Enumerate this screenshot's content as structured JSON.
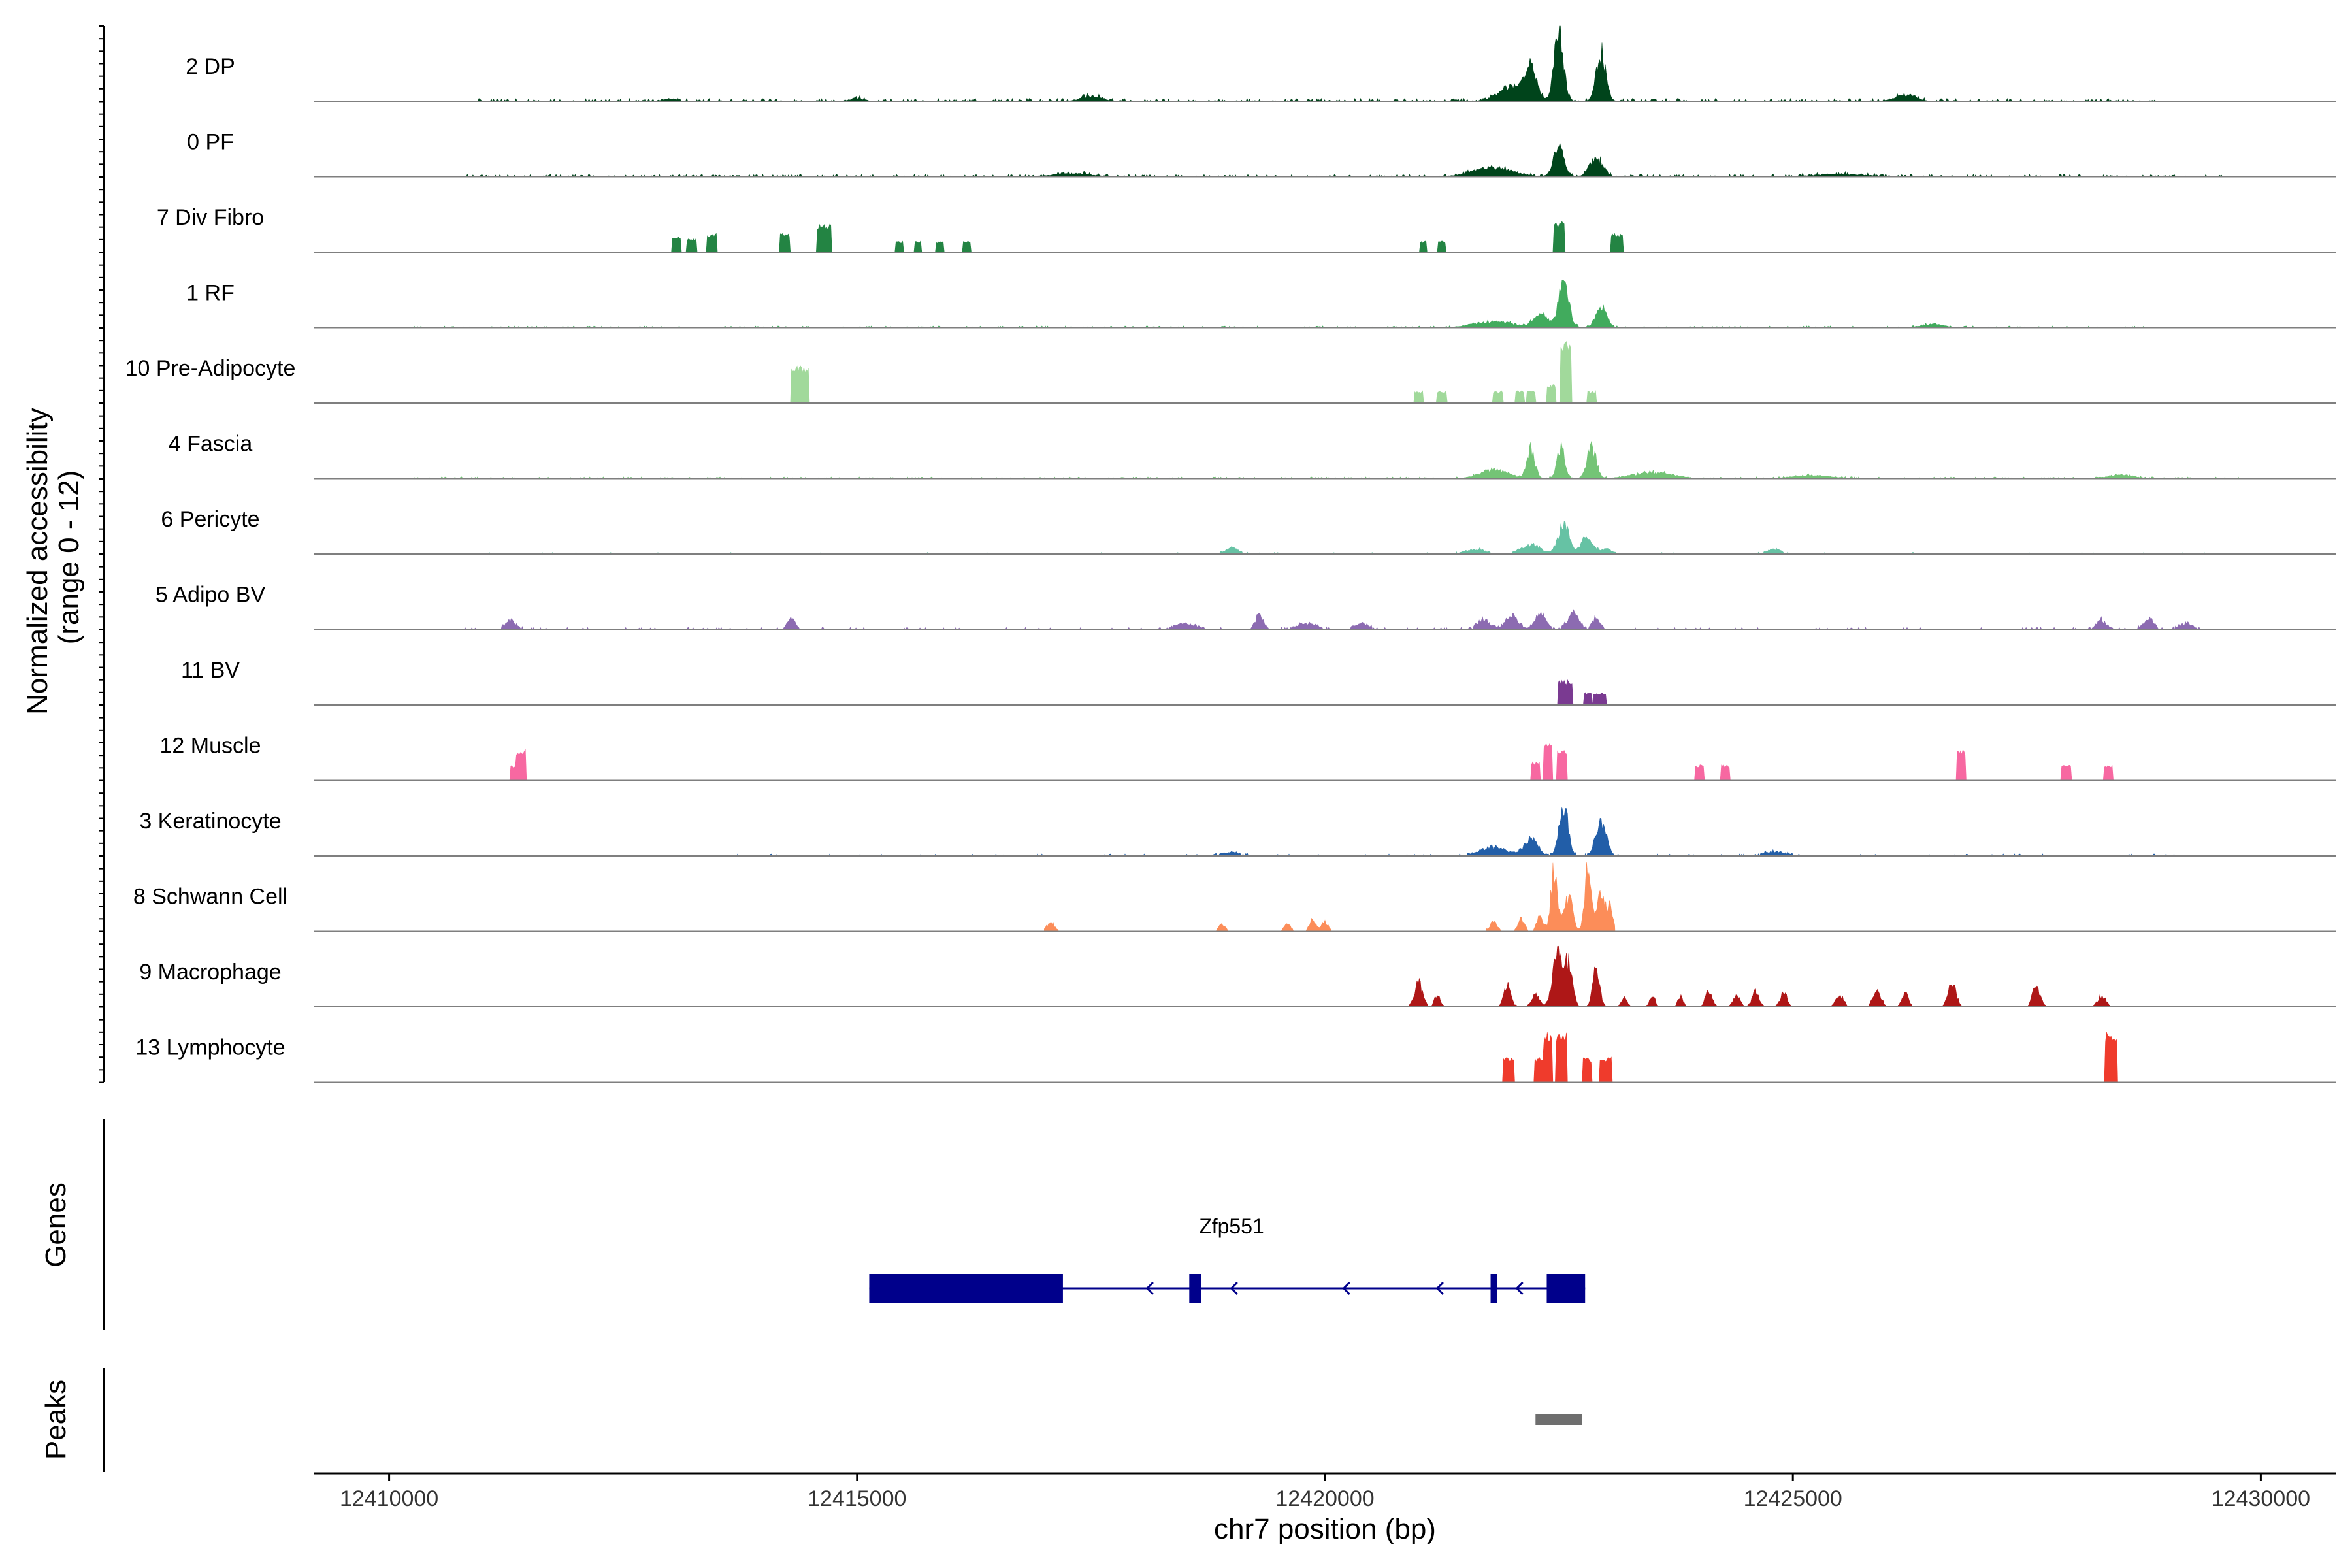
{
  "chart_data": {
    "type": "area",
    "title": "",
    "chromosome": "chr7",
    "xlabel": "chr7 position (bp)",
    "ylabel": "Normalized accessibility\n(range 0 - 12)",
    "ylabel_lines": [
      "Normalized accessibility",
      "(range 0 - 12)"
    ],
    "ylim": [
      0,
      12
    ],
    "xlim": [
      12409200,
      12430800
    ],
    "xticks": [
      12410000,
      12415000,
      12420000,
      12425000,
      12430000
    ],
    "xtick_labels": [
      "12410000",
      "12415000",
      "12420000",
      "12425000",
      "12430000"
    ],
    "panels": {
      "genes_title": "Genes",
      "peaks_title": "Peaks"
    },
    "series": [
      {
        "name": "2 DP",
        "color": "#00441b",
        "style": "noise",
        "range": [
          12410900,
          12428900
        ],
        "noise": 0.5,
        "peaks": [
          [
            12413000,
            100,
            0.4
          ],
          [
            12415000,
            100,
            0.5
          ],
          [
            12417500,
            150,
            0.8
          ],
          [
            12422000,
            200,
            2.5
          ],
          [
            12422500,
            70,
            11.5
          ],
          [
            12422950,
            70,
            8
          ],
          [
            12422200,
            90,
            5
          ],
          [
            12426200,
            150,
            1
          ]
        ]
      },
      {
        "name": "0 PF",
        "color": "#00441b",
        "style": "noise",
        "range": [
          12410800,
          12429600
        ],
        "noise": 0.45,
        "peaks": [
          [
            12422500,
            80,
            5
          ],
          [
            12422900,
            100,
            3
          ],
          [
            12421800,
            300,
            1.5
          ],
          [
            12417300,
            300,
            0.5
          ],
          [
            12425500,
            400,
            0.4
          ]
        ]
      },
      {
        "name": "7 Div Fibro",
        "color": "#238443",
        "style": "blocks",
        "range": [
          12409200,
          12430800
        ],
        "noise": 0,
        "peaks": [
          [
            12413070,
            50,
            2.5
          ],
          [
            12413230,
            50,
            2.2
          ],
          [
            12413450,
            50,
            3
          ],
          [
            12414230,
            50,
            3
          ],
          [
            12414650,
            80,
            4.5
          ],
          [
            12415450,
            40,
            1.8
          ],
          [
            12415650,
            40,
            1.8
          ],
          [
            12415880,
            40,
            1.8
          ],
          [
            12416170,
            40,
            1.8
          ],
          [
            12421050,
            40,
            1.8
          ],
          [
            12421250,
            40,
            1.8
          ],
          [
            12422500,
            60,
            5
          ],
          [
            12423120,
            60,
            3
          ]
        ]
      },
      {
        "name": "1 RF",
        "color": "#41ab5d",
        "style": "noise",
        "range": [
          12410100,
          12428800
        ],
        "noise": 0.3,
        "peaks": [
          [
            12422300,
            100,
            2.5
          ],
          [
            12422550,
            80,
            7
          ],
          [
            12422950,
            80,
            3.5
          ],
          [
            12421800,
            300,
            1
          ],
          [
            12426500,
            150,
            0.6
          ]
        ]
      },
      {
        "name": "10 Pre-Adipocyte",
        "color": "#a1d99b",
        "style": "blocks",
        "range": [
          12409200,
          12430800
        ],
        "noise": 0,
        "peaks": [
          [
            12414350,
            60,
            6
          ],
          [
            12414430,
            60,
            6
          ],
          [
            12421000,
            50,
            2
          ],
          [
            12421250,
            50,
            2
          ],
          [
            12421850,
            50,
            2
          ],
          [
            12422080,
            50,
            2
          ],
          [
            12422200,
            50,
            2
          ],
          [
            12422420,
            50,
            3
          ],
          [
            12422570,
            60,
            10
          ],
          [
            12422850,
            50,
            2
          ]
        ]
      },
      {
        "name": "4 Fascia",
        "color": "#74c476",
        "style": "noise",
        "range": [
          12410200,
          12429800
        ],
        "noise": 0.3,
        "peaks": [
          [
            12422200,
            60,
            5
          ],
          [
            12422520,
            60,
            5
          ],
          [
            12422850,
            70,
            5
          ],
          [
            12421800,
            200,
            1.5
          ],
          [
            12423500,
            300,
            1
          ],
          [
            12425200,
            300,
            0.5
          ],
          [
            12428500,
            200,
            0.6
          ]
        ]
      },
      {
        "name": "6 Pericyte",
        "color": "#66c2a4",
        "style": "sparse",
        "range": [
          12410100,
          12429400
        ],
        "noise": 0.3,
        "peaks": [
          [
            12422550,
            80,
            5
          ],
          [
            12422800,
            80,
            3
          ],
          [
            12422200,
            150,
            1.5
          ],
          [
            12419000,
            100,
            1
          ],
          [
            12421600,
            150,
            0.8
          ],
          [
            12423000,
            100,
            0.8
          ],
          [
            12424800,
            100,
            0.8
          ]
        ]
      },
      {
        "name": "5 Adipo BV",
        "color": "#8c6bb1",
        "style": "sparse",
        "range": [
          12410800,
          12429400
        ],
        "noise": 0.4,
        "peaks": [
          [
            12411300,
            80,
            1.5
          ],
          [
            12414300,
            60,
            1.8
          ],
          [
            12418500,
            150,
            1
          ],
          [
            12419300,
            60,
            2.5
          ],
          [
            12419800,
            150,
            1
          ],
          [
            12420400,
            100,
            1
          ],
          [
            12421700,
            100,
            1.5
          ],
          [
            12422000,
            100,
            2
          ],
          [
            12422300,
            80,
            2.5
          ],
          [
            12422650,
            80,
            3
          ],
          [
            12422900,
            60,
            2
          ],
          [
            12428300,
            80,
            1.5
          ],
          [
            12428800,
            80,
            1.8
          ],
          [
            12429200,
            100,
            1
          ]
        ]
      },
      {
        "name": "11 BV",
        "color": "#7a3a91",
        "style": "blocks",
        "range": [
          12409200,
          12430800
        ],
        "noise": 0,
        "peaks": [
          [
            12422530,
            40,
            4
          ],
          [
            12422600,
            40,
            4
          ],
          [
            12422810,
            40,
            2
          ],
          [
            12422900,
            40,
            2
          ],
          [
            12422970,
            40,
            2
          ]
        ]
      },
      {
        "name": "12 Muscle",
        "color": "#f768a1",
        "style": "blocks",
        "range": [
          12409200,
          12430800
        ],
        "noise": 0,
        "peaks": [
          [
            12411360,
            60,
            2.5
          ],
          [
            12411410,
            50,
            5
          ],
          [
            12422250,
            50,
            3
          ],
          [
            12422380,
            50,
            6
          ],
          [
            12422530,
            50,
            5
          ],
          [
            12424000,
            50,
            2.5
          ],
          [
            12424280,
            50,
            2.5
          ],
          [
            12426800,
            50,
            5
          ],
          [
            12427920,
            50,
            2.5
          ],
          [
            12428370,
            50,
            2.5
          ]
        ]
      },
      {
        "name": "3 Keratinocyte",
        "color": "#225ea8",
        "style": "sparse",
        "range": [
          12413700,
          12429100
        ],
        "noise": 0.35,
        "peaks": [
          [
            12422200,
            100,
            3
          ],
          [
            12422550,
            70,
            8
          ],
          [
            12422950,
            80,
            5.5
          ],
          [
            12421800,
            200,
            1.5
          ],
          [
            12419000,
            150,
            0.6
          ],
          [
            12424800,
            200,
            0.6
          ]
        ]
      },
      {
        "name": "8 Schwann Cell",
        "color": "#fc8d59",
        "style": "sparse",
        "range": [
          12417000,
          12423100
        ],
        "noise": 0,
        "peaks": [
          [
            12417070,
            60,
            1.5
          ],
          [
            12418900,
            50,
            1.2
          ],
          [
            12419600,
            50,
            1.2
          ],
          [
            12419870,
            50,
            2
          ],
          [
            12420000,
            50,
            1.5
          ],
          [
            12421800,
            60,
            1.5
          ],
          [
            12422100,
            50,
            2
          ],
          [
            12422300,
            50,
            2.5
          ],
          [
            12422450,
            50,
            10
          ],
          [
            12422600,
            60,
            6
          ],
          [
            12422810,
            50,
            10
          ],
          [
            12422950,
            60,
            7
          ],
          [
            12423050,
            40,
            4
          ]
        ]
      },
      {
        "name": "9 Macrophage",
        "color": "#ae1717",
        "style": "sparse",
        "range": [
          12420900,
          12428500
        ],
        "noise": 0.2,
        "peaks": [
          [
            12421000,
            60,
            4
          ],
          [
            12421200,
            40,
            2
          ],
          [
            12421950,
            50,
            4
          ],
          [
            12422250,
            60,
            2
          ],
          [
            12422480,
            70,
            9
          ],
          [
            12422600,
            60,
            7
          ],
          [
            12422900,
            50,
            7
          ],
          [
            12423200,
            40,
            1.8
          ],
          [
            12423500,
            40,
            1.8
          ],
          [
            12423800,
            40,
            1.8
          ],
          [
            12424100,
            50,
            2.5
          ],
          [
            12424400,
            50,
            2
          ],
          [
            12424600,
            50,
            2.5
          ],
          [
            12424900,
            50,
            2.5
          ],
          [
            12425500,
            60,
            1.8
          ],
          [
            12425900,
            60,
            2.5
          ],
          [
            12426200,
            50,
            2.5
          ],
          [
            12426700,
            60,
            4
          ],
          [
            12427600,
            60,
            3
          ],
          [
            12428300,
            60,
            1.8
          ]
        ]
      },
      {
        "name": "13 Lymphocyte",
        "color": "#ef3b2c",
        "style": "blocks",
        "range": [
          12409200,
          12430800
        ],
        "noise": 0,
        "peaks": [
          [
            12421960,
            60,
            4
          ],
          [
            12422290,
            50,
            4
          ],
          [
            12422380,
            50,
            8
          ],
          [
            12422530,
            60,
            8
          ],
          [
            12422800,
            50,
            4
          ],
          [
            12423000,
            60,
            4
          ],
          [
            12428400,
            60,
            8
          ]
        ]
      }
    ],
    "genes": [
      {
        "name": "Zfp551",
        "strand": "-",
        "color": "#00008b",
        "start": 12415130,
        "end": 12422780,
        "exons": [
          [
            12415130,
            12417200
          ],
          [
            12418550,
            12418680
          ],
          [
            12421770,
            12421840
          ],
          [
            12422370,
            12422780
          ]
        ],
        "arrows": [
          12418100,
          12419000,
          12420200,
          12421200,
          12422050
        ]
      }
    ],
    "peaks_track": [
      {
        "start": 12422250,
        "end": 12422750,
        "color": "#6e6e6e"
      }
    ]
  }
}
